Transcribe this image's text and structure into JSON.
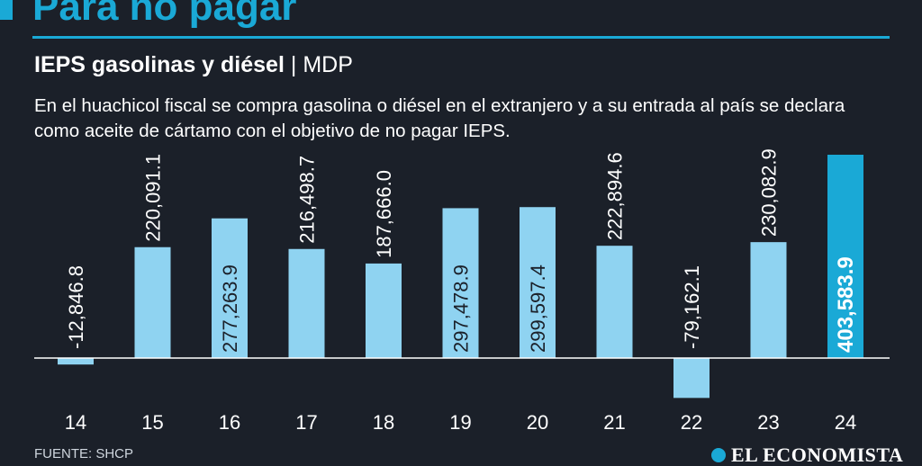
{
  "header": {
    "headline": "Para no pagar",
    "subtitle_strong": "IEPS gasolinas y diésel",
    "subtitle_separator": "|",
    "subtitle_unit": "MDP",
    "description": "En el huachicol fiscal se compra gasolina o diésel en el extranjero y a su entrada al país se declara como aceite de cártamo con el objetivo de no pagar IEPS."
  },
  "footer": {
    "source": "FUENTE: SHCP",
    "brand": "EL ECONOMISTA"
  },
  "colors": {
    "background": "#1b2029",
    "accent": "#1aa9d6",
    "bar": "#8fd3f1",
    "bar_highlight": "#1aa9d6",
    "text": "#ffffff"
  },
  "chart_data": {
    "type": "bar",
    "title": "IEPS gasolinas y diésel",
    "unit": "MDP",
    "xlabel": "",
    "ylabel": "",
    "categories": [
      "14",
      "15",
      "16",
      "17",
      "18",
      "19",
      "20",
      "21",
      "22",
      "23",
      "24"
    ],
    "values": [
      -12846.8,
      220091.1,
      277263.9,
      216498.7,
      187666.0,
      297478.9,
      299597.4,
      222894.6,
      -79162.1,
      230082.9,
      403583.9
    ],
    "labels": [
      "-12,846.8",
      "220,091.1",
      "277,263.9",
      "216,498.7",
      "187,666.0",
      "297,478.9",
      "299,597.4",
      "222,894.6",
      "-79,162.1",
      "230,082.9",
      "403,583.9"
    ],
    "highlight_index": 10,
    "grid": false,
    "legend": "none"
  }
}
